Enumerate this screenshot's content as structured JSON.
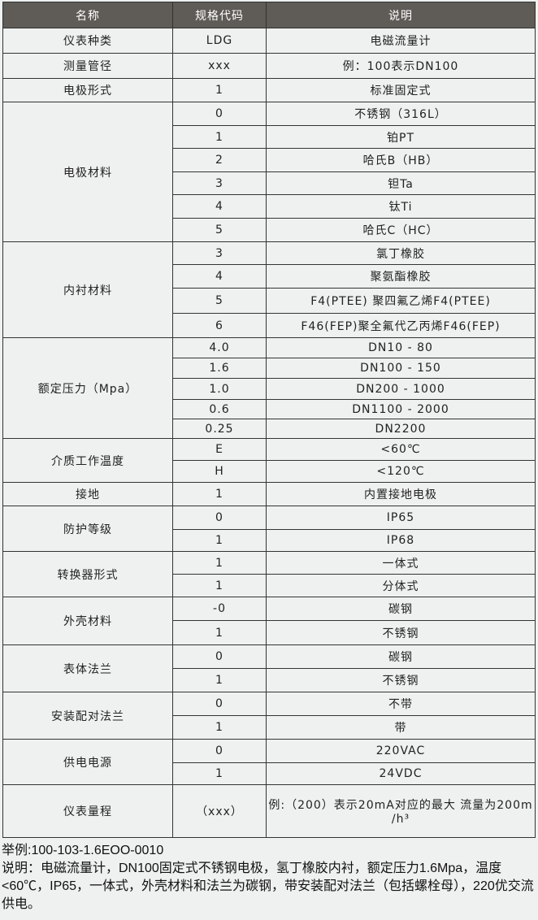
{
  "header": [
    "名称",
    "规格代码",
    "说明"
  ],
  "groups": [
    {
      "name": "仪表种类",
      "rows": [
        [
          "LDG",
          "电磁流量计"
        ]
      ]
    },
    {
      "name": "测量管径",
      "rows": [
        [
          "xxx",
          "例：100表示DN100"
        ]
      ]
    },
    {
      "name": "电极形式",
      "rows": [
        [
          "1",
          "标准固定式"
        ]
      ]
    },
    {
      "name": "电极材料",
      "rows": [
        [
          "0",
          "不锈钢（316L）"
        ],
        [
          "1",
          "铂PT"
        ],
        [
          "2",
          "哈氏B（HB）"
        ],
        [
          "3",
          "钽Ta"
        ],
        [
          "4",
          "钛Ti"
        ],
        [
          "5",
          "哈氏C（HC）"
        ]
      ]
    },
    {
      "name": "内衬材料",
      "rows": [
        [
          "3",
          "氯丁橡胶"
        ],
        [
          "4",
          "聚氨酯橡胶"
        ],
        [
          "5",
          "F4(PTEE) 聚四氟乙烯F4(PTEE)"
        ],
        [
          "6",
          "F46(FEP)聚全氟代乙丙烯F46(FEP)"
        ]
      ]
    },
    {
      "name": "额定压力（Mpa）",
      "rows": [
        [
          "4.0",
          "DN10 - 80"
        ],
        [
          "1.6",
          "DN100 - 150"
        ],
        [
          "1.0",
          "DN200 - 1000"
        ],
        [
          "0.6",
          "DN1100 - 2000"
        ],
        [
          "0.25",
          "DN2200"
        ]
      ]
    },
    {
      "name": "介质工作温度",
      "rows": [
        [
          "E",
          "<60℃"
        ],
        [
          "H",
          "<120℃"
        ]
      ]
    },
    {
      "name": "接地",
      "rows": [
        [
          "1",
          "内置接地电极"
        ]
      ]
    },
    {
      "name": "防护等级",
      "rows": [
        [
          "0",
          "IP65"
        ],
        [
          "1",
          "IP68"
        ]
      ]
    },
    {
      "name": "转换器形式",
      "rows": [
        [
          "1",
          "一体式"
        ],
        [
          "1",
          "分体式"
        ]
      ]
    },
    {
      "name": "外壳材料",
      "rows": [
        [
          "-0",
          "碳钢"
        ],
        [
          "1",
          "不锈钢"
        ]
      ]
    },
    {
      "name": "表体法兰",
      "rows": [
        [
          "0",
          "碳钢"
        ],
        [
          "1",
          "不锈钢"
        ]
      ]
    },
    {
      "name": "安装配对法兰",
      "rows": [
        [
          "0",
          "不带"
        ],
        [
          "1",
          "带"
        ]
      ]
    },
    {
      "name": "供电电源",
      "rows": [
        [
          "0",
          "220VAC"
        ],
        [
          "1",
          "24VDC"
        ]
      ]
    },
    {
      "name": "仪表量程",
      "rows": [
        [
          "（xxx）",
          "例:（200）表示20mA对应的最大 流量为200m /h³"
        ]
      ]
    }
  ],
  "notes": {
    "example": "举例:100-103-1.6EOO-0010",
    "description": "说明：电磁流量计，DN100固定式不锈钢电极，氢丁橡胶内衬，额定压力1.6Mpa，温度<60℃，IP65，一体式，外壳材料和法兰为碳钢，带安装配对法兰（包括螺栓母），220优交流供电。"
  }
}
